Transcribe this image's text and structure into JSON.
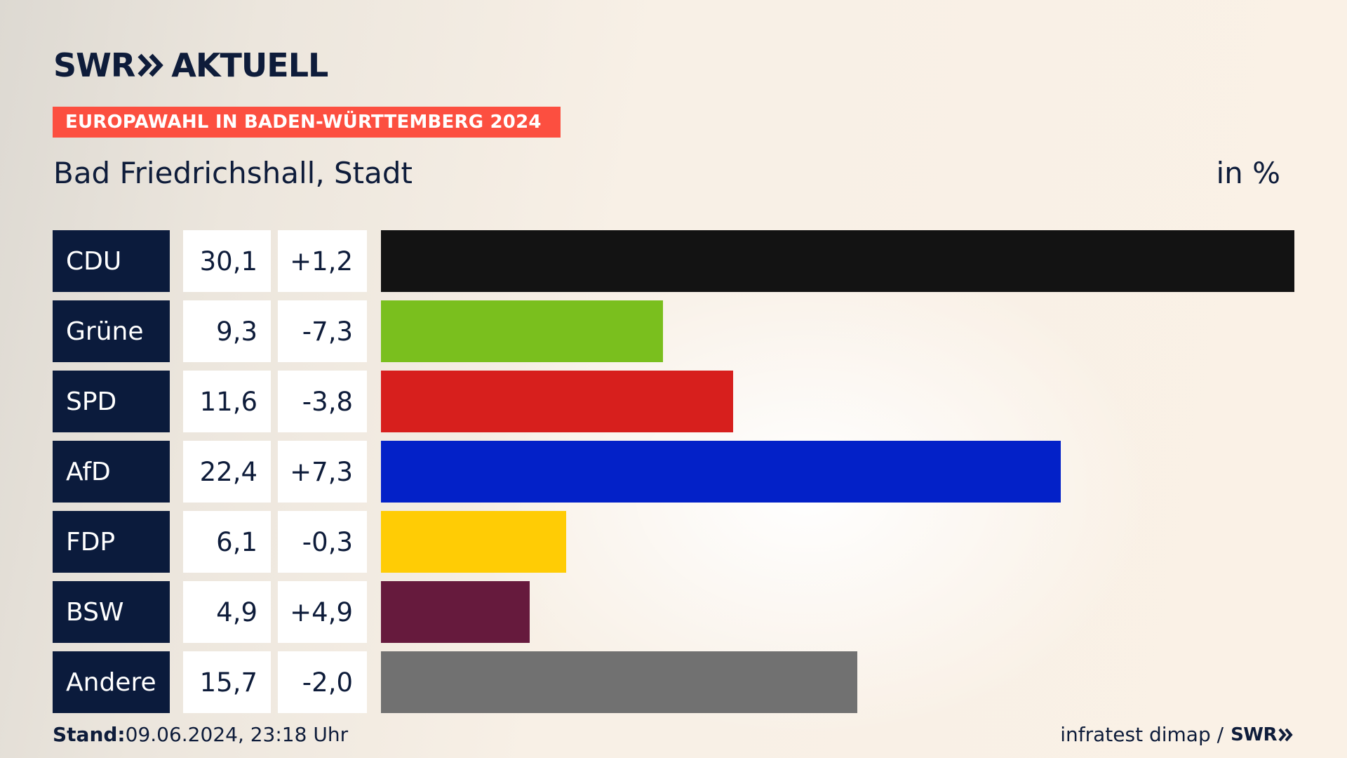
{
  "header": {
    "brand": "SWR",
    "brand_suffix": "AKTUELL",
    "banner": "EUROPAWAHL IN BADEN-WÜRTTEMBERG 2024",
    "subtitle": "Bad Friedrichshall, Stadt",
    "unit": "in %"
  },
  "footer": {
    "stand_label": "Stand:",
    "stand_value": "09.06.2024, 23:18 Uhr",
    "source": "infratest dimap /",
    "source_brand": "SWR"
  },
  "chart_data": {
    "type": "bar",
    "orientation": "horizontal",
    "categories": [
      "CDU",
      "Grüne",
      "SPD",
      "AfD",
      "FDP",
      "BSW",
      "Andere"
    ],
    "values": [
      30.1,
      9.3,
      11.6,
      22.4,
      6.1,
      4.9,
      15.7
    ],
    "value_labels": [
      "30,1",
      "9,3",
      "11,6",
      "22,4",
      "6,1",
      "4,9",
      "15,7"
    ],
    "diff_labels": [
      "+1,2",
      "-7,3",
      "-3,8",
      "+7,3",
      "-0,3",
      "+4,9",
      "-2,0"
    ],
    "colors": [
      "#131313",
      "#7abf1e",
      "#d71f1d",
      "#0321c8",
      "#ffcc05",
      "#661a3d",
      "#717171"
    ],
    "title": "Bad Friedrichshall, Stadt",
    "unit": "in %",
    "xlim": [
      0,
      30.1
    ]
  }
}
